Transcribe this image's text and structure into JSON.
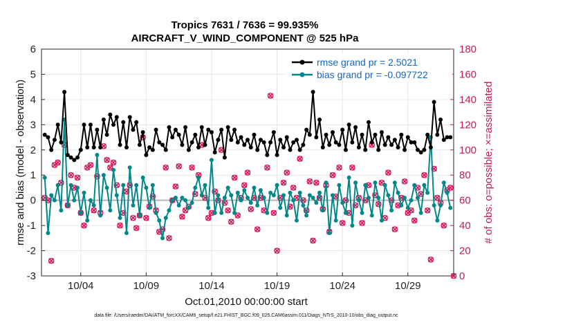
{
  "chart_data": {
    "type": "line",
    "title": "Tropics 7631 / 7636 = 99.935%",
    "subtitle": "AIRCRAFT_V_WIND_COMPONENT @ 525 hPa",
    "xlabel": "Oct.01,2010 00:00:00 start",
    "ylabel": "rmse and bias (model - observation)",
    "ylabel_right": "# of obs: o=possible; ×=assimilated",
    "footer": "data file: /Users/raeder/DAI/ATM_forcXX/CAM6_setup/f.e21.FHIST_BGC.f09_025.CAM6assim.011/Diags_NTrS_2010-10/obs_diag_output.nc",
    "xlim": [
      1,
      32.5
    ],
    "ylim": [
      -3,
      6
    ],
    "ylim_right": [
      0,
      180
    ],
    "x_ticks": [
      4,
      9,
      14,
      19,
      24,
      29
    ],
    "x_tick_labels": [
      "10/04",
      "10/09",
      "10/14",
      "10/19",
      "10/24",
      "10/29"
    ],
    "y_ticks": [
      -3,
      -2,
      -1,
      0,
      1,
      2,
      3,
      4,
      5,
      6
    ],
    "y_ticks_right": [
      0,
      20,
      40,
      60,
      80,
      100,
      120,
      140,
      160,
      180
    ],
    "legend_position": "top-right",
    "x_start": 1.25,
    "x_step": 0.25,
    "series": [
      {
        "name": "rmse grand pr = 2.5021",
        "axis": "left",
        "color": "#000000",
        "values": [
          2.6,
          2.5,
          2.0,
          2.4,
          3.0,
          2.3,
          4.3,
          1.8,
          1.7,
          1.6,
          1.7,
          2.0,
          3.0,
          2.1,
          3.0,
          2.1,
          2.8,
          2.1,
          3.2,
          2.6,
          3.4,
          3.0,
          3.3,
          2.2,
          3.1,
          2.1,
          3.3,
          2.8,
          3.1,
          2.2,
          2.7,
          1.8,
          2.1,
          2.0,
          2.8,
          2.3,
          2.2,
          2.0,
          2.9,
          2.5,
          2.8,
          2.6,
          2.2,
          2.9,
          2.0,
          2.3,
          2.6,
          2.1,
          2.9,
          2.2,
          2.8,
          2.7,
          1.9,
          2.4,
          2.8,
          1.7,
          2.9,
          2.4,
          2.8,
          2.3,
          2.5,
          2.2,
          2.4,
          2.1,
          2.6,
          2.0,
          2.4,
          2.3,
          1.8,
          2.3,
          2.7,
          1.8,
          2.4,
          2.1,
          2.5,
          2.0,
          2.3,
          2.4,
          2.0,
          2.2,
          2.8,
          2.6,
          4.3,
          2.5,
          3.2,
          2.1,
          2.6,
          2.2,
          2.7,
          2.3,
          2.2,
          2.8,
          2.0,
          3.0,
          2.3,
          2.9,
          2.1,
          2.6,
          2.0,
          3.1,
          2.3,
          2.6,
          2.0,
          2.7,
          2.2,
          2.5,
          2.2,
          2.4,
          2.1,
          2.6,
          2.0,
          2.5,
          2.3,
          2.3,
          2.0,
          1.9,
          2.0,
          2.6,
          2.1,
          3.9,
          2.6,
          3.2,
          2.4,
          2.5,
          2.5
        ]
      },
      {
        "name": "bias grand pr = -0.097722",
        "axis": "left",
        "color": "#00878a",
        "values": [
          0.9,
          -1.3,
          0.2,
          0.0,
          0.6,
          -0.4,
          3.2,
          -0.2,
          0.6,
          0.0,
          0.5,
          -0.5,
          0.3,
          -0.8,
          0.0,
          -0.2,
          1.8,
          -0.6,
          1.0,
          0.5,
          -0.4,
          1.2,
          0.2,
          -0.7,
          0.6,
          -1.3,
          1.3,
          -0.2,
          0.6,
          -0.6,
          0.9,
          0.5,
          -0.3,
          0.6,
          -0.5,
          -0.8,
          -1.5,
          -0.7,
          -0.4,
          0.0,
          0.1,
          -0.2,
          0.1,
          0.0,
          -0.3,
          -0.1,
          0.5,
          0.9,
          0.2,
          0.6,
          -0.3,
          1.6,
          -0.5,
          0.2,
          -0.5,
          0.1,
          0.5,
          0.2,
          -0.5,
          0.3,
          0.0,
          0.4,
          0.1,
          -0.1,
          0.5,
          -0.2,
          0.4,
          0.1,
          -0.5,
          0.3,
          0.2,
          0.6,
          -0.3,
          0.2,
          -0.6,
          0.3,
          0.0,
          -0.8,
          0.3,
          -0.2,
          -0.6,
          0.2,
          0.1,
          -0.1,
          0.3,
          -0.4,
          0.7,
          -1.3,
          0.2,
          -0.8,
          0.6,
          -0.1,
          -0.5,
          0.9,
          -1.0,
          0.7,
          0.0,
          -0.5,
          0.6,
          0.1,
          -0.6,
          0.7,
          0.1,
          -0.8,
          0.6,
          0.2,
          -0.4,
          0.7,
          0.3,
          -0.2,
          0.1,
          -0.3,
          0.0,
          0.6,
          0.1,
          -0.5,
          0.6,
          0.3,
          2.5,
          -0.2,
          -0.8,
          -0.2,
          0.7,
          0.3,
          -0.3
        ]
      },
      {
        "name": "obs possible/assimilated",
        "axis": "right",
        "color": "#d6185b",
        "marker": "x",
        "values": [
          62,
          60,
          12,
          88,
          90,
          74,
          104,
          56,
          80,
          70,
          78,
          50,
          40,
          86,
          88,
          52,
          79,
          50,
          103,
          92,
          86,
          90,
          72,
          40,
          50,
          67,
          72,
          46,
          38,
          48,
          110,
          46,
          55,
          63,
          52,
          35,
          37,
          86,
          30,
          60,
          71,
          87,
          47,
          52,
          55,
          86,
          65,
          80,
          104,
          62,
          46,
          50,
          67,
          60,
          100,
          58,
          52,
          43,
          78,
          48,
          62,
          72,
          82,
          53,
          62,
          37,
          62,
          52,
          86,
          143,
          50,
          20,
          62,
          74,
          82,
          55,
          70,
          62,
          93,
          60,
          52,
          75,
          28,
          74,
          62,
          53,
          72,
          35,
          80,
          63,
          86,
          42,
          60,
          50,
          86,
          56,
          62,
          42,
          60,
          72,
          104,
          64,
          57,
          74,
          46,
          82,
          60,
          37,
          56,
          62,
          75,
          50,
          52,
          44,
          70,
          65,
          80,
          52,
          13,
          85,
          62,
          58,
          40,
          68,
          70,
          0
        ]
      }
    ]
  }
}
